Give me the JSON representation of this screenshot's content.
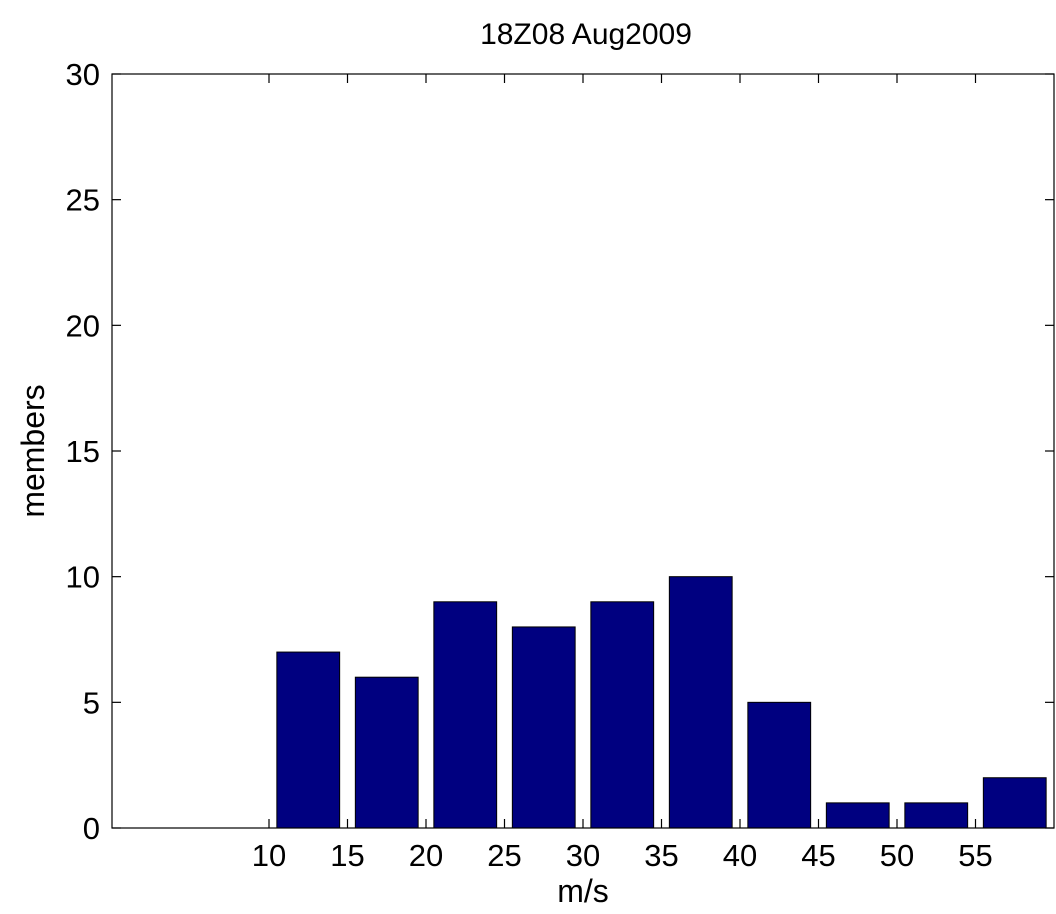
{
  "chart_data": {
    "type": "bar",
    "title": "18Z08 Aug2009",
    "xlabel": "m/s",
    "ylabel": "members",
    "xlim": [
      0,
      60
    ],
    "ylim": [
      0,
      30
    ],
    "x_ticks": [
      10,
      15,
      20,
      25,
      30,
      35,
      40,
      45,
      50,
      55
    ],
    "y_ticks": [
      0,
      5,
      10,
      15,
      20,
      25,
      30
    ],
    "bar_width": 4,
    "bars": [
      {
        "x": 12.5,
        "value": 7
      },
      {
        "x": 17.5,
        "value": 6
      },
      {
        "x": 22.5,
        "value": 9
      },
      {
        "x": 27.5,
        "value": 8
      },
      {
        "x": 32.5,
        "value": 9
      },
      {
        "x": 37.5,
        "value": 10
      },
      {
        "x": 42.5,
        "value": 5
      },
      {
        "x": 47.5,
        "value": 1
      },
      {
        "x": 52.5,
        "value": 1
      },
      {
        "x": 57.5,
        "value": 2
      }
    ],
    "bar_color": "#000080",
    "grid": false,
    "legend": "none"
  }
}
